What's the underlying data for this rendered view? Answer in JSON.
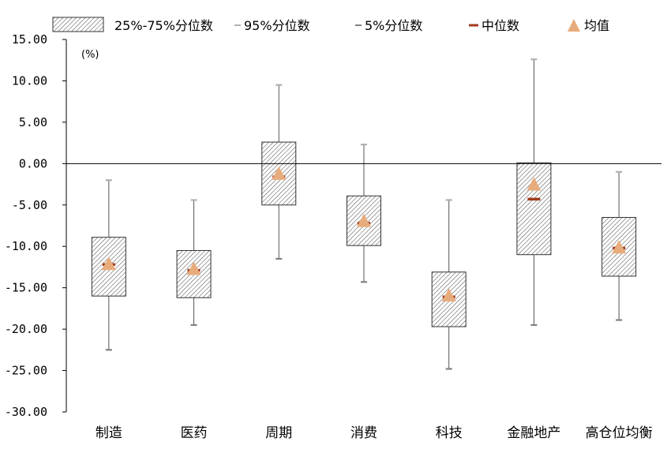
{
  "chart_data": {
    "type": "boxplot",
    "unit_label": "(%)",
    "ylim": [
      -30,
      15
    ],
    "yticks": [
      15,
      10,
      5,
      0,
      -5,
      -10,
      -15,
      -20,
      -25,
      -30
    ],
    "legend": {
      "position": "top",
      "entries": [
        {
          "key": "iqr",
          "label": "25%-75%分位数"
        },
        {
          "key": "p95",
          "label": "95%分位数"
        },
        {
          "key": "p5",
          "label": "5%分位数"
        },
        {
          "key": "median",
          "label": "中位数"
        },
        {
          "key": "mean",
          "label": "均值"
        }
      ]
    },
    "colors": {
      "axis": "#000000",
      "whisker": "#555555",
      "p95": "#b0b0b0",
      "p5": "#808080",
      "median": "#a23a1c",
      "mean": "#e8ac7c",
      "hatch": "#555555"
    },
    "categories": [
      "制造",
      "医药",
      "周期",
      "消费",
      "科技",
      "金融地产",
      "高仓位均衡"
    ],
    "series": [
      {
        "category": "制造",
        "p5": -22.5,
        "q1": -16.0,
        "median": -12.2,
        "q3": -8.9,
        "p95": -2.0,
        "mean": -12.1
      },
      {
        "category": "医药",
        "p5": -19.5,
        "q1": -16.2,
        "median": -12.9,
        "q3": -10.5,
        "p95": -4.4,
        "mean": -12.7
      },
      {
        "category": "周期",
        "p5": -11.5,
        "q1": -5.0,
        "median": -1.6,
        "q3": 2.6,
        "p95": 9.5,
        "mean": -1.2
      },
      {
        "category": "消费",
        "p5": -14.3,
        "q1": -9.9,
        "median": -7.2,
        "q3": -3.9,
        "p95": 2.3,
        "mean": -6.9
      },
      {
        "category": "科技",
        "p5": -24.8,
        "q1": -19.7,
        "median": -16.1,
        "q3": -13.1,
        "p95": -4.4,
        "mean": -15.9
      },
      {
        "category": "金融地产",
        "p5": -19.5,
        "q1": -11.0,
        "median": -4.3,
        "q3": 0.1,
        "p95": 12.6,
        "mean": -2.5
      },
      {
        "category": "高仓位均衡",
        "p5": -18.9,
        "q1": -13.6,
        "median": -10.2,
        "q3": -6.5,
        "p95": -1.0,
        "mean": -10.1
      }
    ]
  }
}
